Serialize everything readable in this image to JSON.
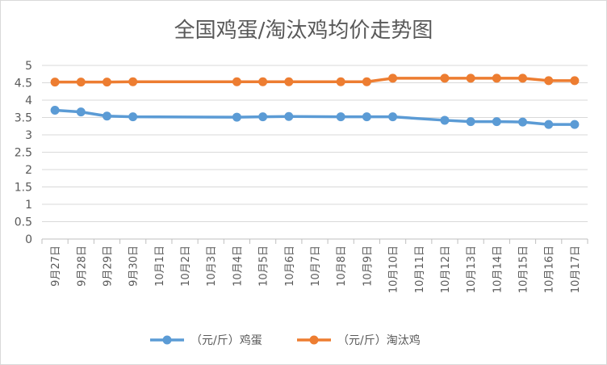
{
  "chart_data": {
    "type": "line",
    "title": "全国鸡蛋/淘汰鸡均价走势图",
    "categories": [
      "9月27日",
      "9月28日",
      "9月29日",
      "9月30日",
      "10月1日",
      "10月2日",
      "10月3日",
      "10月4日",
      "10月5日",
      "10月6日",
      "10月7日",
      "10月8日",
      "10月9日",
      "10月10日",
      "10月11日",
      "10月12日",
      "10月13日",
      "10月14日",
      "10月15日",
      "10月16日",
      "10月17日"
    ],
    "series": [
      {
        "name": "（元/斤）鸡蛋",
        "color": "#5B9BD5",
        "values": [
          3.71,
          3.66,
          3.54,
          3.52,
          null,
          null,
          null,
          3.51,
          3.52,
          3.53,
          null,
          3.52,
          3.52,
          3.52,
          null,
          3.42,
          3.38,
          3.38,
          3.37,
          3.3,
          3.3
        ]
      },
      {
        "name": "（元/斤）淘汰鸡",
        "color": "#ED7D31",
        "values": [
          4.52,
          4.52,
          4.52,
          4.53,
          null,
          null,
          null,
          4.53,
          4.53,
          4.53,
          null,
          4.53,
          4.53,
          4.63,
          null,
          4.63,
          4.63,
          4.63,
          4.63,
          4.56,
          4.56
        ]
      }
    ],
    "yticks": [
      "0",
      "0.5",
      "1",
      "1.5",
      "2",
      "2.5",
      "3",
      "3.5",
      "4",
      "4.5",
      "5"
    ],
    "ylim": [
      0,
      5
    ],
    "grid": true,
    "legend": "bottom"
  }
}
